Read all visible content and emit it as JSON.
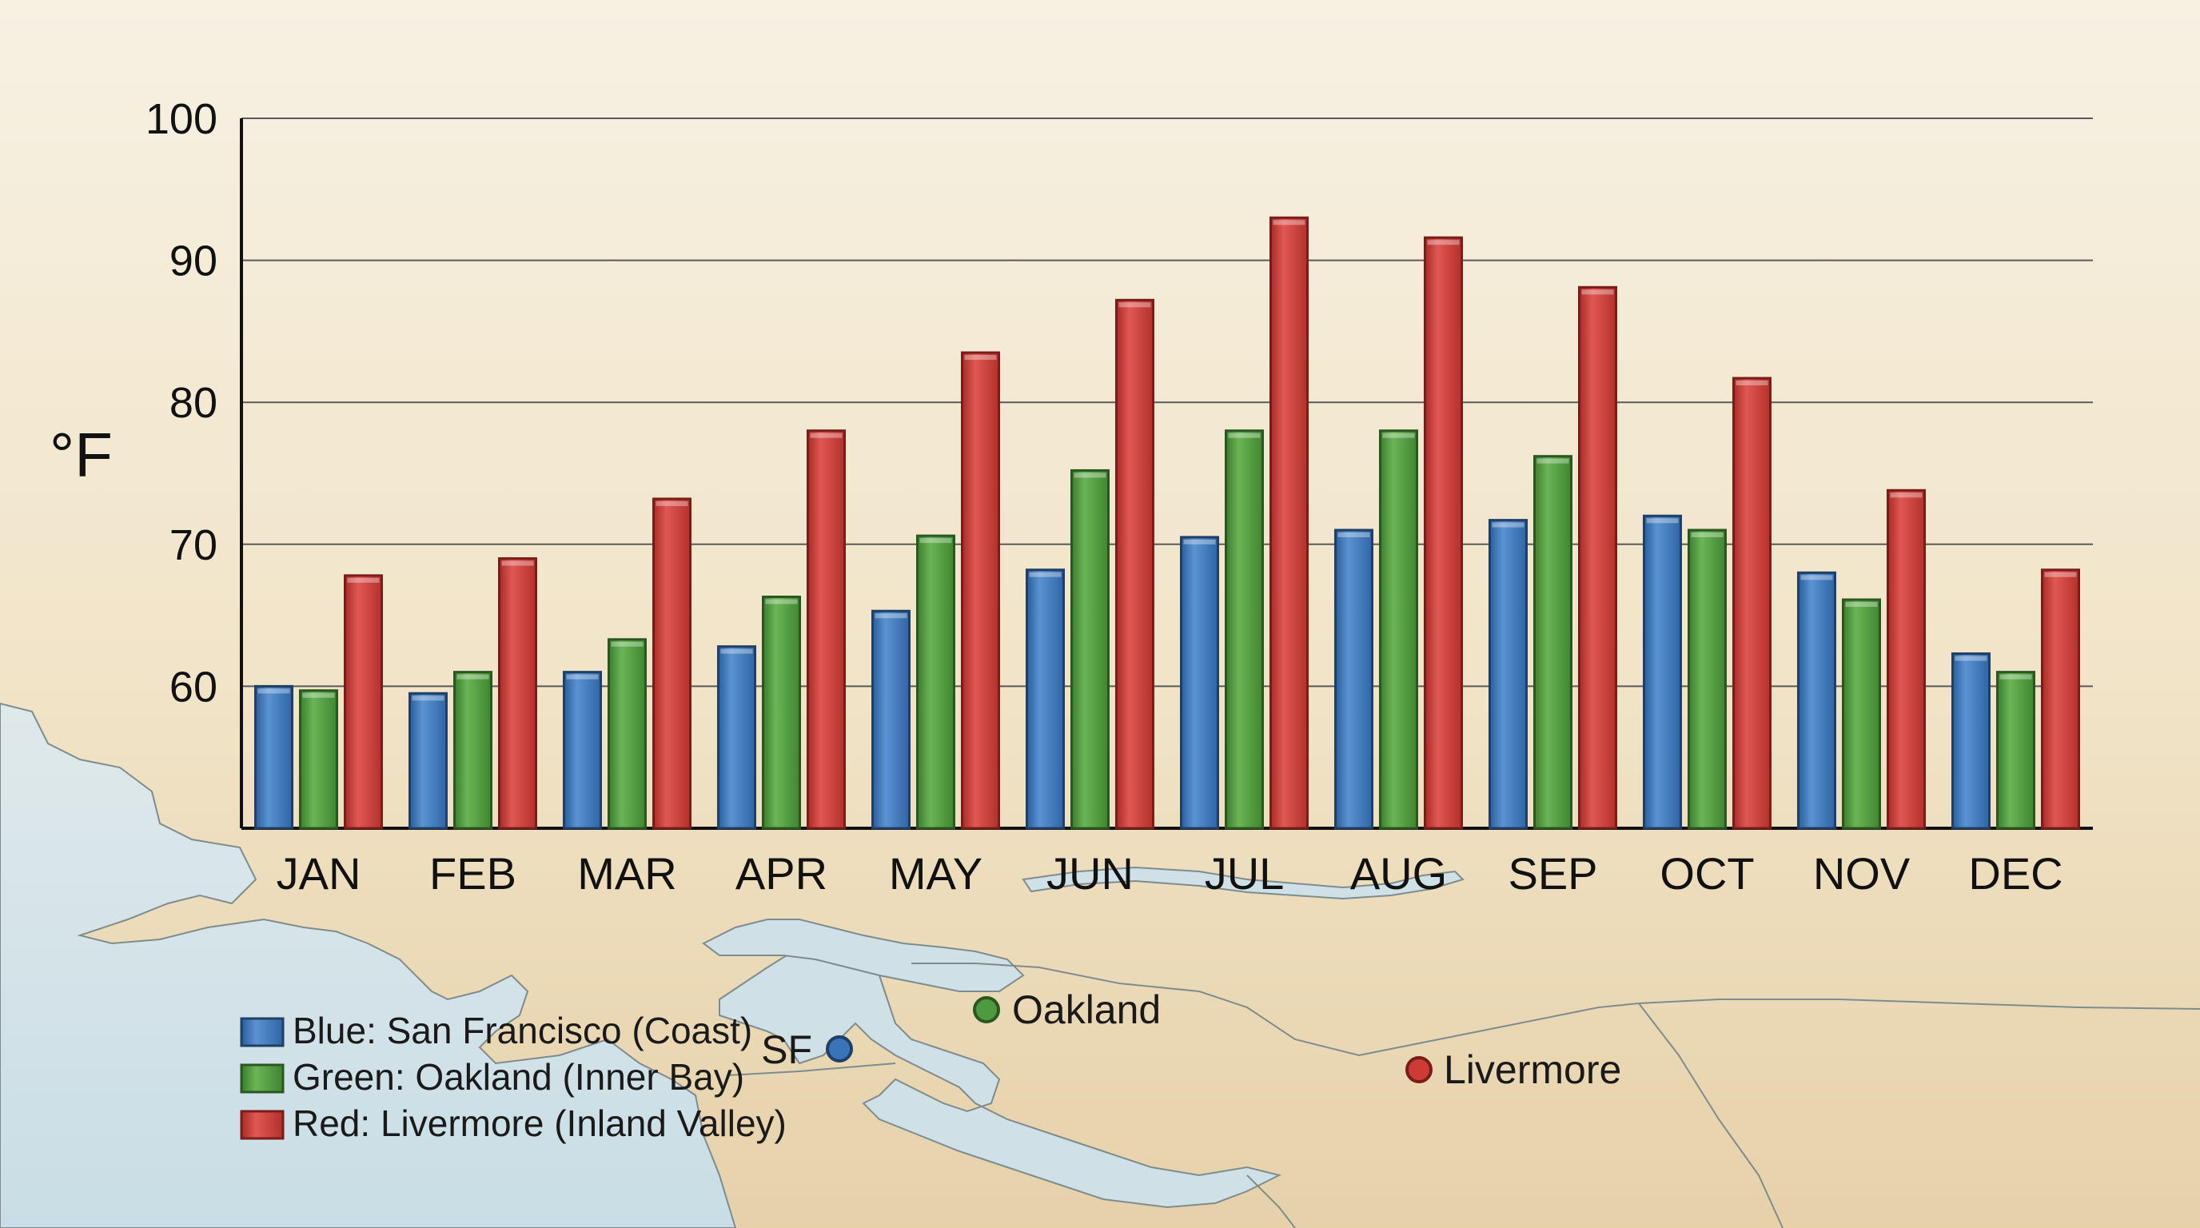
{
  "colors": {
    "san_francisco": "#3a74b8",
    "oakland": "#4e9a3e",
    "livermore": "#cc3b36"
  },
  "map": {
    "labels": [
      {
        "key": "sf",
        "text": "SF",
        "series": 0
      },
      {
        "key": "oakland",
        "text": "Oakland",
        "series": 1
      },
      {
        "key": "livermore",
        "text": "Livermore",
        "series": 2
      }
    ]
  },
  "chart_data": {
    "type": "bar",
    "title": "",
    "xlabel": "",
    "ylabel": "°F",
    "ylim": [
      50,
      100
    ],
    "yticks": [
      60,
      70,
      80,
      90,
      100
    ],
    "grid": true,
    "legend_position": "bottom-left",
    "categories": [
      "JAN",
      "FEB",
      "MAR",
      "APR",
      "MAY",
      "JUN",
      "JUL",
      "AUG",
      "SEP",
      "OCT",
      "NOV",
      "DEC"
    ],
    "series": [
      {
        "name": "Blue: San Francisco (Coast)",
        "values": [
          60,
          59.5,
          61,
          62.8,
          65.3,
          68.2,
          70.5,
          71,
          71.7,
          72,
          68,
          62.3
        ]
      },
      {
        "name": "Green: Oakland (Inner Bay)",
        "values": [
          59.7,
          61,
          63.3,
          66.3,
          70.6,
          75.2,
          78,
          78,
          76.2,
          71,
          66.1,
          61
        ]
      },
      {
        "name": "Red: Livermore (Inland Valley)",
        "values": [
          67.8,
          69,
          73.2,
          78,
          83.5,
          87.2,
          93,
          91.6,
          88.1,
          81.7,
          73.8,
          68.2
        ]
      }
    ]
  }
}
